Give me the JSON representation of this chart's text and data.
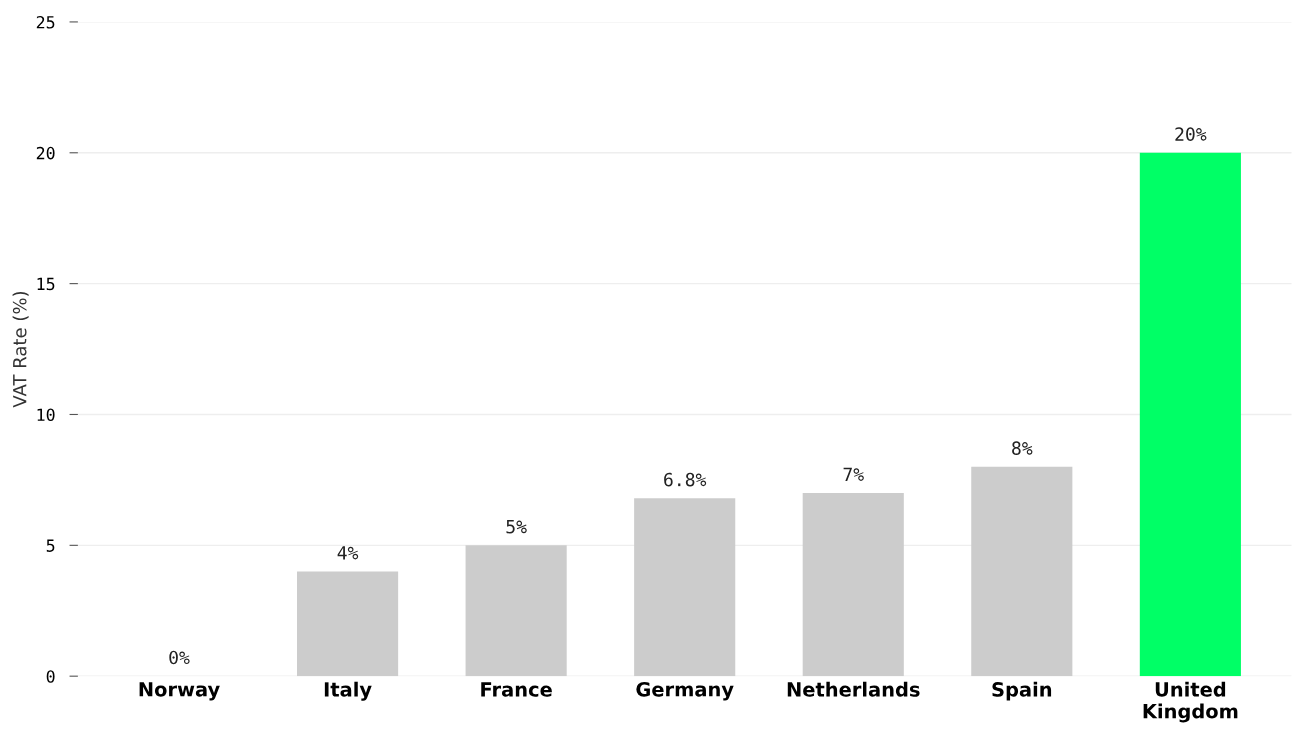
{
  "chart_data": {
    "type": "bar",
    "ylabel": "VAT Rate (%)",
    "categories": [
      "Norway",
      "Italy",
      "France",
      "Germany",
      "Netherlands",
      "Spain",
      "United Kingdom"
    ],
    "values": [
      0,
      4,
      5,
      6.8,
      7,
      8,
      20
    ],
    "value_labels": [
      "0%",
      "4%",
      "5%",
      "6.8%",
      "7%",
      "8%",
      "20%"
    ],
    "colors": [
      "#cccccc",
      "#cccccc",
      "#cccccc",
      "#cccccc",
      "#cccccc",
      "#cccccc",
      "#00ff66"
    ],
    "ylim": [
      0,
      25
    ],
    "yticks": [
      0,
      5,
      10,
      15,
      20,
      25
    ],
    "grid": "y",
    "legend": false
  }
}
